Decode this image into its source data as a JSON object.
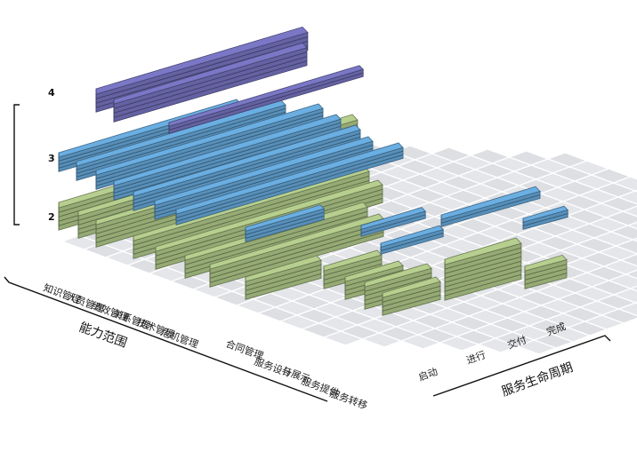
{
  "levels": [
    "4",
    "3",
    "2"
  ],
  "capability": {
    "title": "能力范围",
    "items": [
      "知识管理",
      "人员管理",
      "绩效管理",
      "关系管理",
      "技术管理",
      "危机管理"
    ]
  },
  "service": {
    "items": [
      "合同管理",
      "服务设计",
      "与展示",
      "服务提供",
      "服务转移"
    ]
  },
  "lifecycle": {
    "title": "服务生命周期",
    "stages": [
      "启动",
      "进行",
      "交付",
      "完成"
    ]
  },
  "colors": {
    "purple": "#7a78c6",
    "blue": "#6aaee2",
    "green": "#b6cf8e",
    "grid": "#e4e6ea"
  }
}
